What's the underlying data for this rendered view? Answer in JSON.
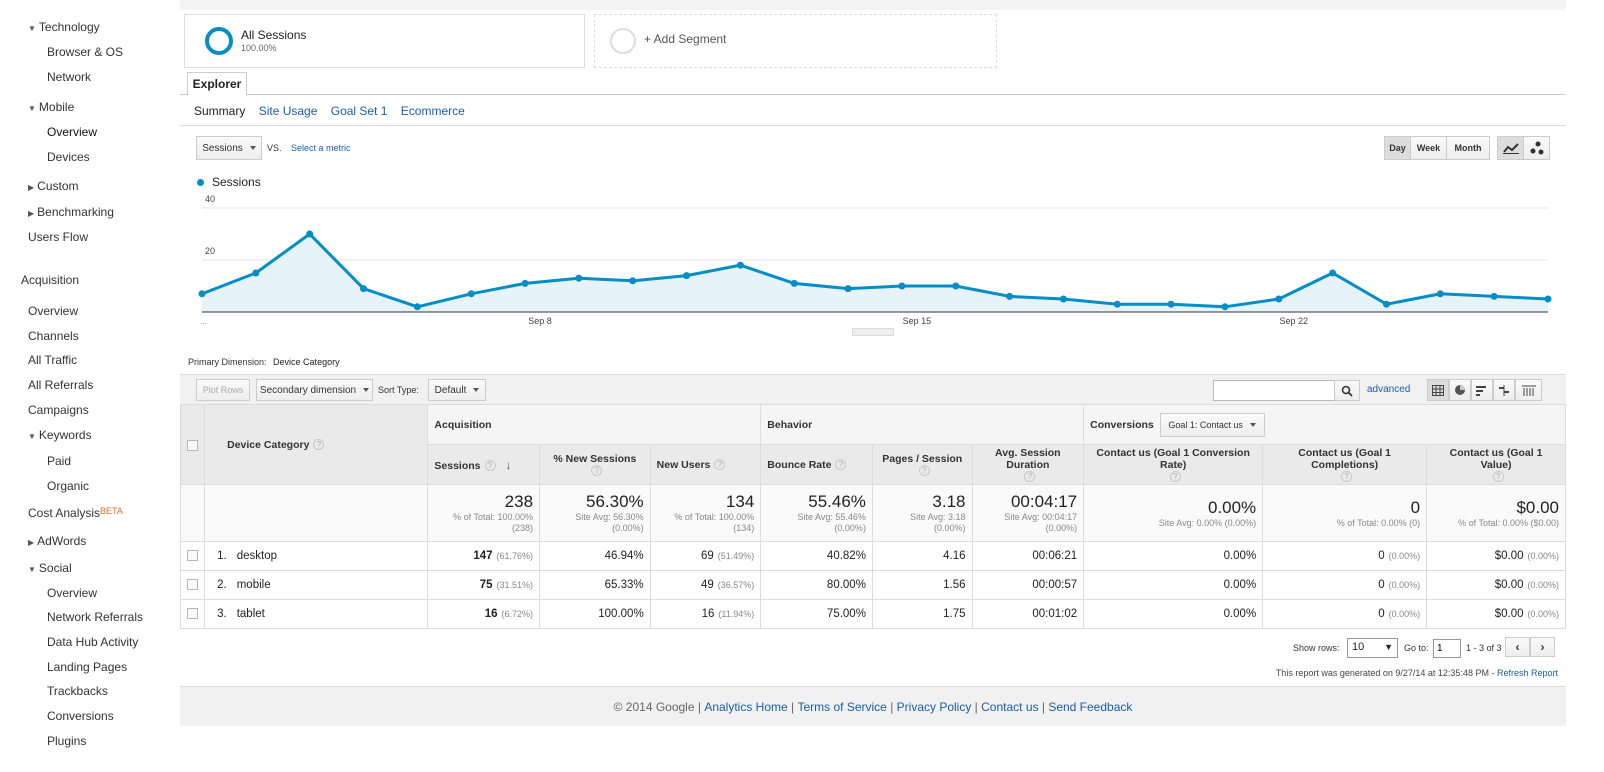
{
  "sidebar": {
    "technology": "Technology",
    "browser_os": "Browser & OS",
    "network": "Network",
    "mobile": "Mobile",
    "mobile_overview": "Overview",
    "devices": "Devices",
    "custom": "Custom",
    "benchmarking": "Benchmarking",
    "users_flow": "Users Flow",
    "acquisition": "Acquisition",
    "acq_overview": "Overview",
    "channels": "Channels",
    "all_traffic": "All Traffic",
    "all_referrals": "All Referrals",
    "campaigns": "Campaigns",
    "keywords": "Keywords",
    "paid": "Paid",
    "organic": "Organic",
    "cost_analysis": "Cost Analysis",
    "beta": "BETA",
    "adwords": "AdWords",
    "social": "Social",
    "social_overview": "Overview",
    "network_referrals": "Network Referrals",
    "data_hub": "Data Hub Activity",
    "landing_pages": "Landing Pages",
    "trackbacks": "Trackbacks",
    "conversions": "Conversions",
    "plugins": "Plugins"
  },
  "segments": {
    "all_sessions": "All Sessions",
    "all_sessions_pct": "100.00%",
    "add_segment": "+ Add Segment"
  },
  "tabs": {
    "explorer": "Explorer"
  },
  "subtabs": [
    "Summary",
    "Site Usage",
    "Goal Set 1",
    "Ecommerce"
  ],
  "controls": {
    "metric": "Sessions",
    "vs": "VS.",
    "select_metric": "Select a metric",
    "day": "Day",
    "week": "Week",
    "month": "Month"
  },
  "chart_data": {
    "type": "line",
    "legend": "Sessions",
    "ylim": [
      0,
      40
    ],
    "yticks": [
      "40",
      "20"
    ],
    "xticks": [
      "Sep 8",
      "Sep 15",
      "Sep 22"
    ],
    "x_start_label": "...",
    "values": [
      7,
      15,
      30,
      9,
      2,
      7,
      11,
      13,
      12,
      14,
      18,
      11,
      9,
      10,
      10,
      6,
      5,
      3,
      3,
      2,
      5,
      15,
      3,
      7,
      6,
      5
    ],
    "accent": "#058dc7"
  },
  "dimension": {
    "label": "Primary Dimension:",
    "value": "Device Category"
  },
  "toolbar": {
    "plot_rows": "Plot Rows",
    "secondary": "Secondary dimension",
    "sort_type": "Sort Type:",
    "sort_default": "Default",
    "search_value": "",
    "advanced": "advanced"
  },
  "table": {
    "groups": {
      "acquisition": "Acquisition",
      "behavior": "Behavior",
      "conversions": "Conversions",
      "goal_select": "Goal 1: Contact us"
    },
    "cols": {
      "device": "Device Category",
      "sessions": "Sessions",
      "new_sessions": "% New Sessions",
      "new_users": "New Users",
      "bounce": "Bounce Rate",
      "pages": "Pages / Session",
      "duration": "Avg. Session Duration",
      "conv_rate": "Contact us (Goal 1 Conversion Rate)",
      "completions": "Contact us (Goal 1 Completions)",
      "value": "Contact us (Goal 1 Value)"
    },
    "totals": {
      "sessions": "238",
      "sessions_sub1": "% of Total: 100.00%",
      "sessions_sub2": "(238)",
      "new_sessions": "56.30%",
      "new_sessions_sub1": "Site Avg: 56.30%",
      "new_sessions_sub2": "(0.00%)",
      "new_users": "134",
      "new_users_sub1": "% of Total: 100.00%",
      "new_users_sub2": "(134)",
      "bounce": "55.46%",
      "bounce_sub1": "Site Avg: 55.46%",
      "bounce_sub2": "(0.00%)",
      "pages": "3.18",
      "pages_sub1": "Site Avg: 3.18",
      "pages_sub2": "(0.00%)",
      "duration": "00:04:17",
      "duration_sub1": "Site Avg: 00:04:17",
      "duration_sub2": "(0.00%)",
      "conv_rate": "0.00%",
      "conv_rate_sub": "Site Avg: 0.00% (0.00%)",
      "completions": "0",
      "completions_sub": "% of Total: 0.00% (0)",
      "value": "$0.00",
      "value_sub": "% of Total: 0.00% ($0.00)"
    },
    "rows": [
      {
        "num": "1.",
        "name": "desktop",
        "sessions": "147",
        "sessions_pct": "(61.76%)",
        "new_sessions": "46.94%",
        "new_users": "69",
        "new_users_pct": "(51.49%)",
        "bounce": "40.82%",
        "pages": "4.16",
        "duration": "00:06:21",
        "conv_rate": "0.00%",
        "completions": "0",
        "completions_pct": "(0.00%)",
        "value": "$0.00",
        "value_pct": "(0.00%)"
      },
      {
        "num": "2.",
        "name": "mobile",
        "sessions": "75",
        "sessions_pct": "(31.51%)",
        "new_sessions": "65.33%",
        "new_users": "49",
        "new_users_pct": "(36.57%)",
        "bounce": "80.00%",
        "pages": "1.56",
        "duration": "00:00:57",
        "conv_rate": "0.00%",
        "completions": "0",
        "completions_pct": "(0.00%)",
        "value": "$0.00",
        "value_pct": "(0.00%)"
      },
      {
        "num": "3.",
        "name": "tablet",
        "sessions": "16",
        "sessions_pct": "(6.72%)",
        "new_sessions": "100.00%",
        "new_users": "16",
        "new_users_pct": "(11.94%)",
        "bounce": "75.00%",
        "pages": "1.75",
        "duration": "00:01:02",
        "conv_rate": "0.00%",
        "completions": "0",
        "completions_pct": "(0.00%)",
        "value": "$0.00",
        "value_pct": "(0.00%)"
      }
    ]
  },
  "pagination": {
    "show_rows": "Show rows:",
    "rows_value": "10",
    "goto": "Go to:",
    "goto_value": "1",
    "range": "1 - 3 of 3"
  },
  "report": {
    "generated": "This report was generated on 9/27/14 at 12:35:48 PM -",
    "refresh": "Refresh Report"
  },
  "footer": {
    "copyright": "© 2014 Google |",
    "links": [
      "Analytics Home",
      "Terms of Service",
      "Privacy Policy",
      "Contact us",
      "Send Feedback"
    ]
  }
}
